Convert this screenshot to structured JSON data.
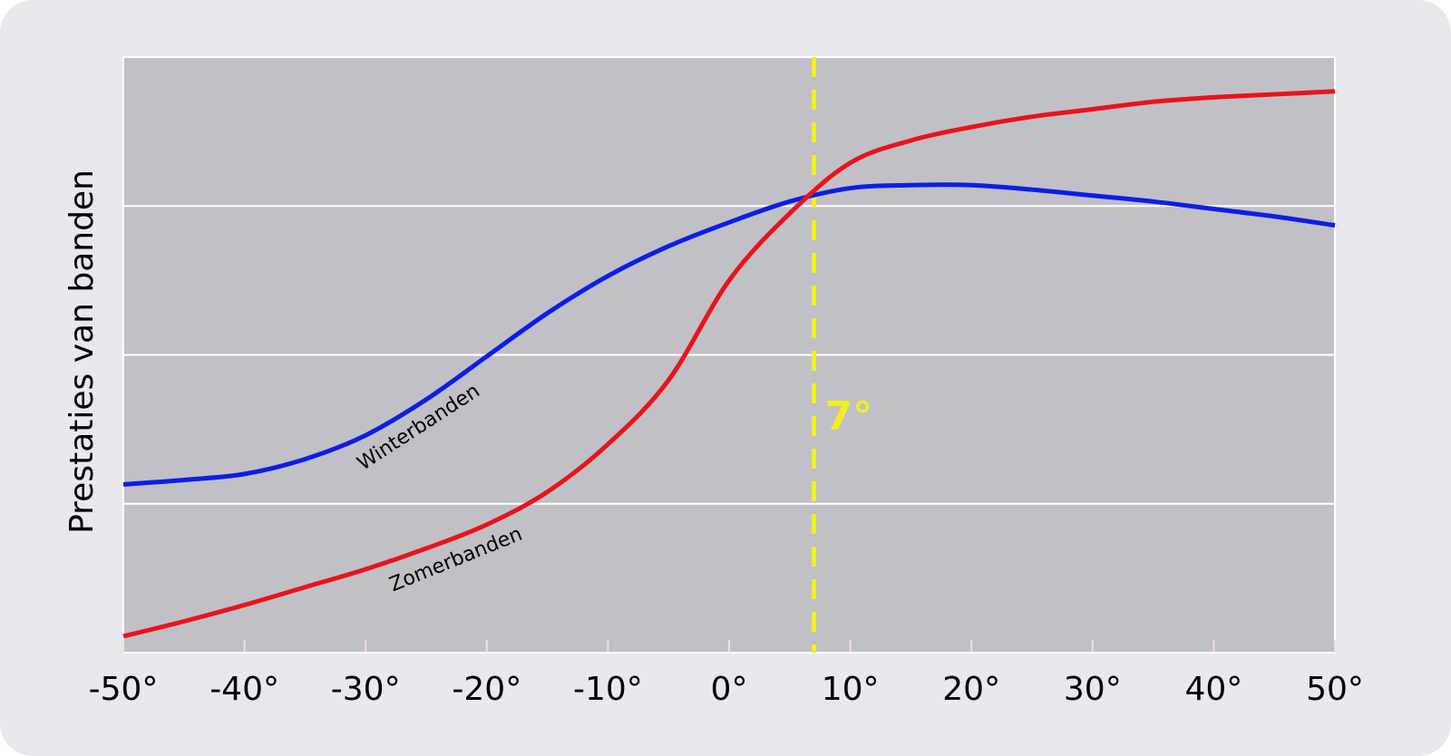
{
  "chart_data": {
    "type": "line",
    "y_label": "Prestaties van banden",
    "x": [
      -50,
      -45,
      -40,
      -35,
      -30,
      -25,
      -20,
      -15,
      -10,
      -5,
      0,
      5,
      10,
      15,
      20,
      25,
      30,
      35,
      40,
      45,
      50
    ],
    "series": [
      {
        "name": "Winterbanden",
        "color": "#0a1ee8",
        "values": [
          1.13,
          1.16,
          1.2,
          1.3,
          1.46,
          1.7,
          1.99,
          2.28,
          2.53,
          2.73,
          2.89,
          3.03,
          3.12,
          3.14,
          3.14,
          3.11,
          3.07,
          3.03,
          2.98,
          2.93,
          2.87
        ]
      },
      {
        "name": "Zomerbanden",
        "color": "#e8141a",
        "values": [
          0.11,
          0.21,
          0.32,
          0.44,
          0.56,
          0.7,
          0.86,
          1.08,
          1.4,
          1.83,
          2.5,
          2.95,
          3.29,
          3.44,
          3.53,
          3.6,
          3.65,
          3.7,
          3.73,
          3.75,
          3.77
        ]
      }
    ],
    "xlim": [
      -50,
      50
    ],
    "xticks": [
      {
        "value": -50,
        "label": "-50°"
      },
      {
        "value": -40,
        "label": "-40°"
      },
      {
        "value": -30,
        "label": "-30°"
      },
      {
        "value": -20,
        "label": "-20°"
      },
      {
        "value": -10,
        "label": "-10°"
      },
      {
        "value": 0,
        "label": "0°"
      },
      {
        "value": 10,
        "label": "10°"
      },
      {
        "value": 20,
        "label": "20°"
      },
      {
        "value": 30,
        "label": "30°"
      },
      {
        "value": 40,
        "label": "40°"
      },
      {
        "value": 50,
        "label": "50°"
      }
    ],
    "ylim": [
      0,
      4
    ],
    "yticks": [
      1,
      2,
      3
    ],
    "grid": true,
    "annotations": [
      {
        "x": 7,
        "label": "7°",
        "color": "#f0f020"
      }
    ]
  }
}
